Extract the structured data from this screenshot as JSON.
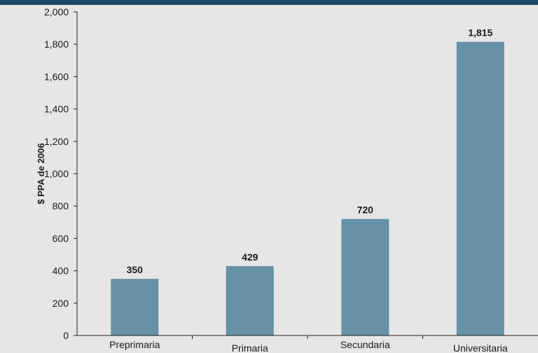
{
  "colors": {
    "top_bar": "#1f4766",
    "bar": "#6691a6",
    "axis": "#222222",
    "background": "#e6e6e7"
  },
  "chart_data": {
    "type": "bar",
    "categories": [
      "Preprimaria",
      "Primaria",
      "Secundaria",
      "Universitaria"
    ],
    "values": [
      350,
      429,
      720,
      1815
    ],
    "data_labels": [
      "350",
      "429",
      "720",
      "1,815"
    ],
    "title": "",
    "xlabel": "",
    "ylabel": "$ PPA de 2006",
    "ylim": [
      0,
      2000
    ],
    "yticks": [
      0,
      200,
      400,
      600,
      800,
      1000,
      1200,
      1400,
      1600,
      1800,
      2000
    ],
    "ytick_labels": [
      "0",
      "200",
      "400",
      "600",
      "800",
      "1,000",
      "1,200",
      "1,400",
      "1,600",
      "1,800",
      "2,000"
    ],
    "grid": false,
    "legend": "none"
  }
}
